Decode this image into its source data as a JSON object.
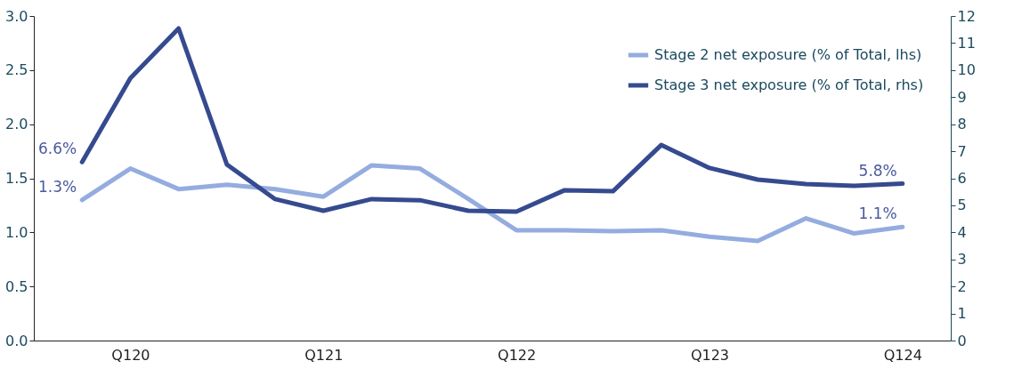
{
  "chart_data": {
    "type": "line",
    "categories": [
      null,
      "Q120",
      null,
      null,
      null,
      "Q121",
      null,
      null,
      null,
      "Q122",
      null,
      null,
      null,
      "Q123",
      null,
      null,
      null,
      "Q124"
    ],
    "series": [
      {
        "name": "Stage 2 net exposure (% of Total, lhs)",
        "color": "#94acdf",
        "values": [
          1.3,
          1.59,
          1.4,
          1.44,
          1.4,
          1.33,
          1.62,
          1.59,
          1.31,
          1.02,
          1.02,
          1.01,
          1.02,
          0.96,
          0.92,
          1.13,
          0.99,
          1.05
        ],
        "value_labels": [
          "1.3%",
          null,
          null,
          null,
          null,
          null,
          null,
          null,
          null,
          null,
          null,
          null,
          null,
          null,
          null,
          null,
          null,
          "1.1%"
        ]
      },
      {
        "name": "Stage 3 net exposure (% of Total, rhs)",
        "color": "#354a8f",
        "axis": "y2",
        "values": [
          6.6,
          9.7,
          11.54,
          6.51,
          5.23,
          4.8,
          5.23,
          5.19,
          4.8,
          4.77,
          5.56,
          5.52,
          7.23,
          6.38,
          5.95,
          5.79,
          5.72,
          5.8
        ],
        "value_labels": [
          "6.6%",
          null,
          null,
          null,
          null,
          null,
          null,
          null,
          null,
          null,
          null,
          null,
          null,
          null,
          null,
          null,
          null,
          "5.8%"
        ]
      }
    ],
    "ylim": [
      0,
      3
    ],
    "yticks": [
      {
        "value": 0,
        "label": "0.0"
      },
      0.5,
      {
        "value": 1,
        "label": "1.0"
      },
      1.5,
      {
        "value": 2,
        "label": "2.0"
      },
      2.5,
      {
        "value": 3,
        "label": "3.0"
      }
    ],
    "y2lim": [
      0,
      12
    ],
    "y2ticks": [
      0,
      1,
      2,
      3,
      4,
      5,
      6,
      7,
      8,
      9,
      10,
      11,
      12
    ],
    "legend": "top right",
    "grid": false
  }
}
